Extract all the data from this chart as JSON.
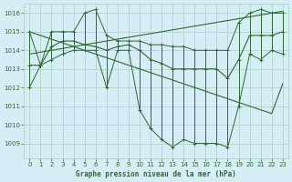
{
  "title": "Graphe pression niveau de la mer (hPa)",
  "bg_color": "#d5eef5",
  "grid_color": "#aacfbe",
  "line_color": "#2d6a2d",
  "xlim": [
    -0.5,
    23.5
  ],
  "ylim": [
    1008.2,
    1016.5
  ],
  "yticks": [
    1009,
    1010,
    1011,
    1012,
    1013,
    1014,
    1015,
    1016
  ],
  "xticks": [
    0,
    1,
    2,
    3,
    4,
    5,
    6,
    7,
    8,
    9,
    10,
    11,
    12,
    13,
    14,
    15,
    16,
    17,
    18,
    19,
    20,
    21,
    22,
    23
  ],
  "max_vals": [
    1015.0,
    1013.2,
    1015.0,
    1015.0,
    1015.0,
    1016.0,
    1016.2,
    1014.8,
    1014.5,
    1014.5,
    1014.5,
    1014.3,
    1014.3,
    1014.2,
    1014.2,
    1014.0,
    1014.0,
    1014.0,
    1014.0,
    1015.5,
    1016.0,
    1016.2,
    1016.0,
    1016.0
  ],
  "min_vals": [
    1012.0,
    1013.2,
    1013.5,
    1013.8,
    1014.0,
    1014.0,
    1014.0,
    1012.0,
    1014.0,
    1014.0,
    1010.8,
    1009.8,
    1009.2,
    1008.8,
    1009.2,
    1009.0,
    1009.0,
    1009.0,
    1008.8,
    1011.0,
    1013.8,
    1013.5,
    1014.0,
    1013.8
  ],
  "mean_vals": [
    1013.2,
    1013.2,
    1014.2,
    1014.5,
    1014.5,
    1014.3,
    1014.2,
    1014.0,
    1014.2,
    1014.3,
    1014.0,
    1013.5,
    1013.3,
    1013.0,
    1013.0,
    1013.0,
    1013.0,
    1013.0,
    1012.5,
    1013.5,
    1014.8,
    1014.8,
    1014.8,
    1015.0
  ],
  "trend_up": [
    1013.8,
    1013.9,
    1014.0,
    1014.1,
    1014.2,
    1014.3,
    1014.4,
    1014.5,
    1014.6,
    1014.7,
    1014.8,
    1014.9,
    1015.0,
    1015.1,
    1015.2,
    1015.3,
    1015.4,
    1015.5,
    1015.6,
    1015.7,
    1015.8,
    1015.9,
    1016.0,
    1016.1
  ],
  "trend_down": [
    1015.0,
    1014.8,
    1014.6,
    1014.4,
    1014.2,
    1014.0,
    1013.8,
    1013.6,
    1013.4,
    1013.2,
    1013.0,
    1012.8,
    1012.6,
    1012.4,
    1012.2,
    1012.0,
    1011.8,
    1011.6,
    1011.4,
    1011.2,
    1011.0,
    1010.8,
    1010.6,
    1012.2
  ]
}
